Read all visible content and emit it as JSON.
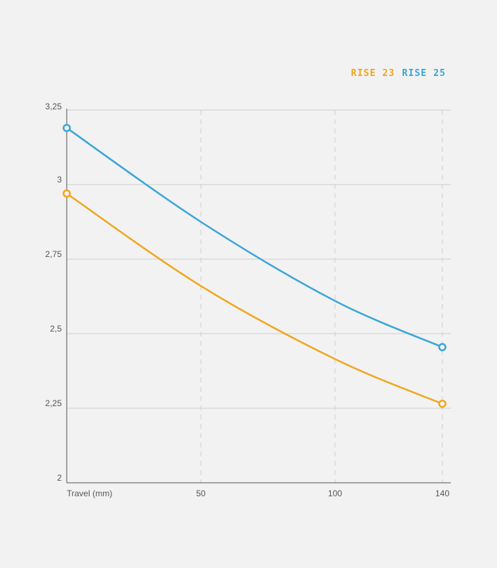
{
  "chart_data": {
    "type": "line",
    "xlabel": "Travel (mm)",
    "x_ticks": [
      "50",
      "100",
      "140"
    ],
    "y_ticks": [
      "2",
      "2,25",
      "2,5",
      "2,75",
      "3",
      "3,25"
    ],
    "xlim": [
      0,
      140
    ],
    "ylim": [
      2,
      3.25
    ],
    "grid": true,
    "legend_position": "top-right",
    "series": [
      {
        "name": "RISE 23",
        "color": "#f0a61f",
        "x": [
          0,
          50,
          100,
          140
        ],
        "y": [
          2.97,
          2.66,
          2.415,
          2.265
        ]
      },
      {
        "name": "RISE 25",
        "color": "#39a6d8",
        "x": [
          0,
          50,
          100,
          140
        ],
        "y": [
          3.19,
          2.875,
          2.61,
          2.455
        ]
      }
    ]
  }
}
